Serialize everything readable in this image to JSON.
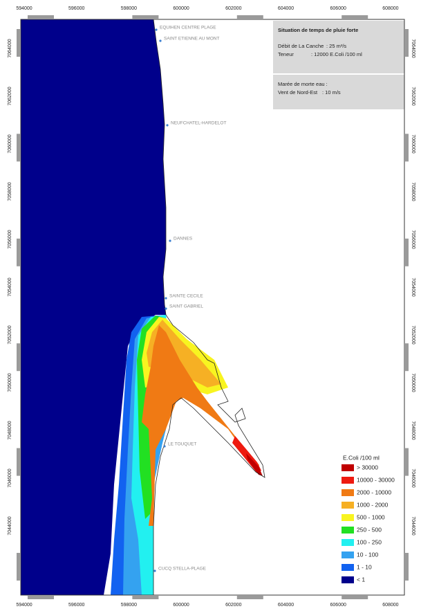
{
  "map": {
    "x_ticks_top": [
      "594000",
      "596000",
      "598000",
      "600000",
      "602000",
      "604000",
      "606000",
      "608000"
    ],
    "x_ticks_bottom": [
      "594000",
      "596000",
      "598000",
      "600000",
      "602000",
      "604000",
      "606000",
      "608000"
    ],
    "y_ticks_left": [
      "7064000",
      "7062000",
      "7060000",
      "7058000",
      "7056000",
      "7054000",
      "7052000",
      "7050000",
      "7048000",
      "7046000",
      "7044000"
    ],
    "y_ticks_right": [
      "7064000",
      "7062000",
      "7060000",
      "7058000",
      "7056000",
      "7054000",
      "7052000",
      "7050000",
      "7048000",
      "7046000",
      "7044000"
    ],
    "places": [
      "EQUIHEN CENTRE PLAGE",
      "SAINT ETIENNE AU MONT",
      "NEUFCHATEL-HARDELOT",
      "DANNES",
      "SAINTE CECILE",
      "SAINT GABRIEL",
      "LE TOUQUET",
      "CUCQ STELLA-PLAGE"
    ],
    "info": {
      "title": "Situation de temps de pluie forte",
      "lines": [
        "Débit de La Canche",
        ": 25 m³/s",
        "Teneur",
        ": 12000 E.Coli /100 ml",
        "Marée de morte eau :",
        "Vent de Nord-Est",
        ": 10 m/s"
      ]
    },
    "legend": {
      "title": "E.Coli /100 ml",
      "items": [
        {
          "label": "> 30000",
          "color": "#c00000"
        },
        {
          "label": "10000 - 30000",
          "color": "#ee1a10"
        },
        {
          "label": "2000 - 10000",
          "color": "#f07a14"
        },
        {
          "label": "1000 - 2000",
          "color": "#f6b024"
        },
        {
          "label": "500 - 1000",
          "color": "#f8f420"
        },
        {
          "label": "250 - 500",
          "color": "#22e022"
        },
        {
          "label": "100 - 250",
          "color": "#22f0f0"
        },
        {
          "label": "10 - 100",
          "color": "#34a2f0"
        },
        {
          "label": "1 - 10",
          "color": "#1262f0"
        },
        {
          "label": "< 1",
          "color": "#00008b"
        }
      ]
    }
  }
}
